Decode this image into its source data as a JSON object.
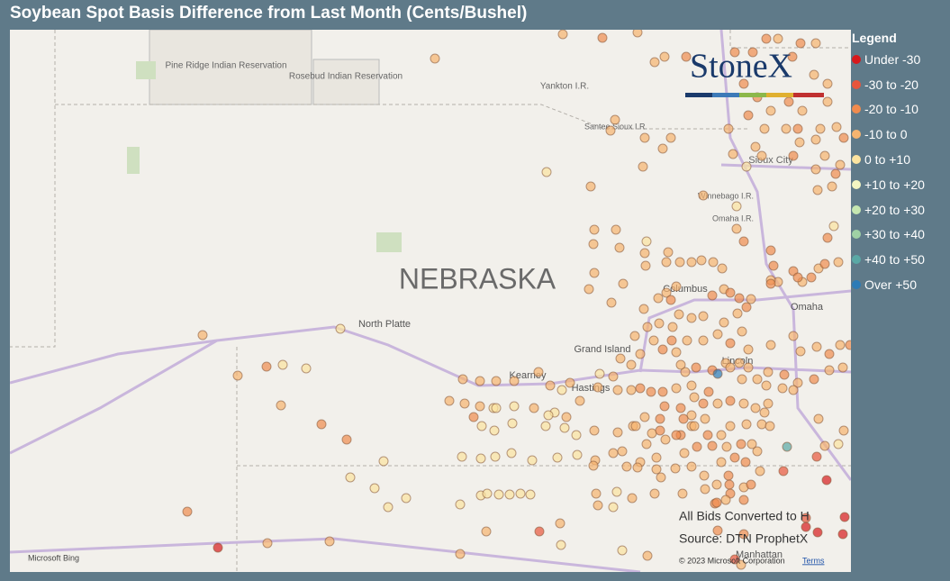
{
  "title": "Soybean Spot Basis Difference from Last Month (Cents/Bushel)",
  "legend": {
    "title": "Legend",
    "items": [
      {
        "label": "Under -30",
        "color": "#d7191c"
      },
      {
        "label": "-30 to -20",
        "color": "#e8553c"
      },
      {
        "label": "-20 to -10",
        "color": "#f08b4e"
      },
      {
        "label": "-10 to 0",
        "color": "#f6b46f"
      },
      {
        "label": "0 to +10",
        "color": "#fbe3a0"
      },
      {
        "label": "+10 to +20",
        "color": "#f3f6c2"
      },
      {
        "label": "+20 to +30",
        "color": "#c5e6b0"
      },
      {
        "label": "+30 to +40",
        "color": "#9fd1a5"
      },
      {
        "label": "+40 to +50",
        "color": "#5aa8a5"
      },
      {
        "label": "Over +50",
        "color": "#2c7bb6"
      }
    ]
  },
  "map": {
    "state": "NEBRASKA",
    "places": [
      "Pine Ridge Indian Reservation",
      "Rosebud Indian Reservation",
      "Yankton I.R.",
      "Santee Sioux I.R.",
      "Sioux City",
      "Winnebago I.R.",
      "Omaha I.R.",
      "Columbus",
      "Omaha",
      "North Platte",
      "Grand Island",
      "Kearney",
      "Hastings",
      "Lincoln",
      "Manhattan"
    ]
  },
  "logo": "StoneX",
  "notes": [
    "All Bids Converted to H",
    "Source: DTN ProphetX"
  ],
  "attribution": {
    "provider": "Microsoft Bing",
    "copyright": "© 2023 Microsoft Corporation",
    "terms": "Terms"
  }
}
